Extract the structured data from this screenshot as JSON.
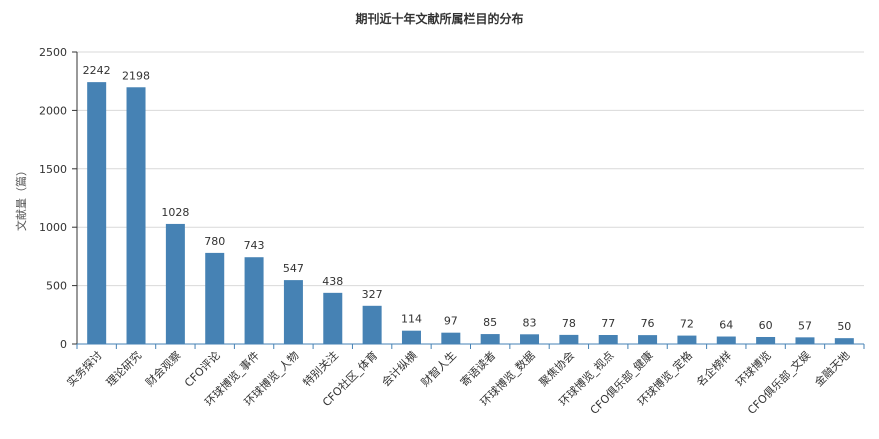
{
  "chart_data": {
    "type": "bar",
    "title": "期刊近十年文献所属栏目的分布",
    "xlabel": "",
    "ylabel": "文献量（篇）",
    "ylim": [
      0,
      2500
    ],
    "yticks": [
      0,
      500,
      1000,
      1500,
      2000,
      2500
    ],
    "grid": true,
    "bar_color": "#4682b4",
    "categories": [
      "实务探讨",
      "理论研究",
      "财会观察",
      "CFO评论",
      "环球博览_事件",
      "环球博览_人物",
      "特别关注",
      "CFO社区_体育",
      "会计纵横",
      "财智人生",
      "寄语读者",
      "环球博览_数据",
      "聚焦协会",
      "环球博览_视点",
      "CFO俱乐部_健康",
      "环球博览_定格",
      "名企榜样",
      "环球博览",
      "CFO俱乐部_文娱",
      "金融天地"
    ],
    "values": [
      2242,
      2198,
      1028,
      780,
      743,
      547,
      438,
      327,
      114,
      97,
      85,
      83,
      78,
      77,
      76,
      72,
      64,
      60,
      57,
      50
    ]
  }
}
